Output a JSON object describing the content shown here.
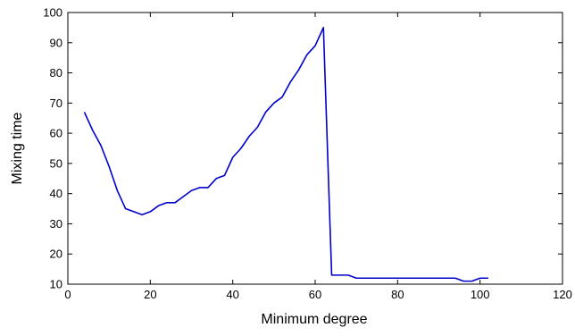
{
  "chart_data": {
    "type": "line",
    "title": "",
    "xlabel": "Minimum degree",
    "ylabel": "Mixing time",
    "xlim": [
      0,
      120
    ],
    "ylim": [
      10,
      100
    ],
    "xticks": [
      0,
      20,
      40,
      60,
      80,
      100,
      120
    ],
    "yticks": [
      10,
      20,
      30,
      40,
      50,
      60,
      70,
      80,
      90,
      100
    ],
    "grid": false,
    "legend": "none",
    "series": [
      {
        "color": "#0000cc",
        "x": [
          4,
          6,
          8,
          10,
          12,
          14,
          16,
          18,
          20,
          22,
          24,
          26,
          28,
          30,
          32,
          34,
          36,
          38,
          40,
          42,
          44,
          46,
          48,
          50,
          52,
          54,
          56,
          58,
          60,
          62,
          64,
          66,
          68,
          70,
          72,
          74,
          76,
          78,
          80,
          82,
          84,
          86,
          88,
          90,
          92,
          94,
          96,
          98,
          100,
          102
        ],
        "y": [
          67,
          61,
          56,
          49,
          41,
          35,
          34,
          33,
          34,
          36,
          37,
          37,
          39,
          41,
          42,
          42,
          45,
          46,
          52,
          55,
          59,
          62,
          67,
          70,
          72,
          77,
          81,
          86,
          89,
          95,
          13,
          13,
          13,
          12,
          12,
          12,
          12,
          12,
          12,
          12,
          12,
          12,
          12,
          12,
          12,
          12,
          11,
          11,
          12,
          12
        ]
      }
    ]
  }
}
